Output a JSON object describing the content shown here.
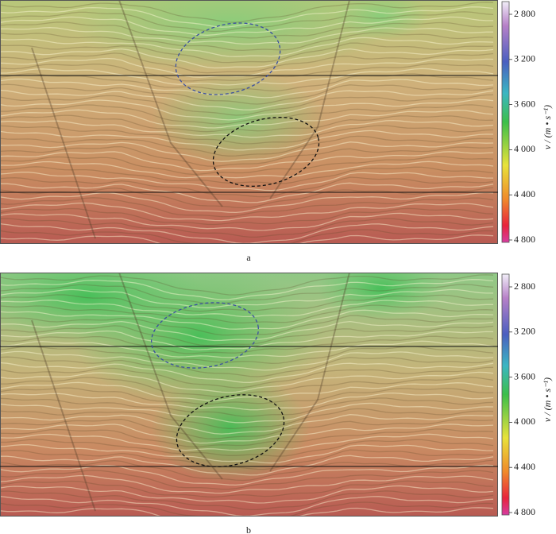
{
  "panels": [
    {
      "label": "a",
      "colorbar": {
        "title": "v / (m • s⁻¹)",
        "ticks": [
          "2 800",
          "3 200",
          "3 600",
          "4 000",
          "4 400",
          "4 800"
        ]
      }
    },
    {
      "label": "b",
      "colorbar": {
        "title": "v / (m • s⁻¹)",
        "ticks": [
          "2 800",
          "3 200",
          "3 600",
          "4 000",
          "4 400",
          "4 800"
        ]
      }
    }
  ]
}
